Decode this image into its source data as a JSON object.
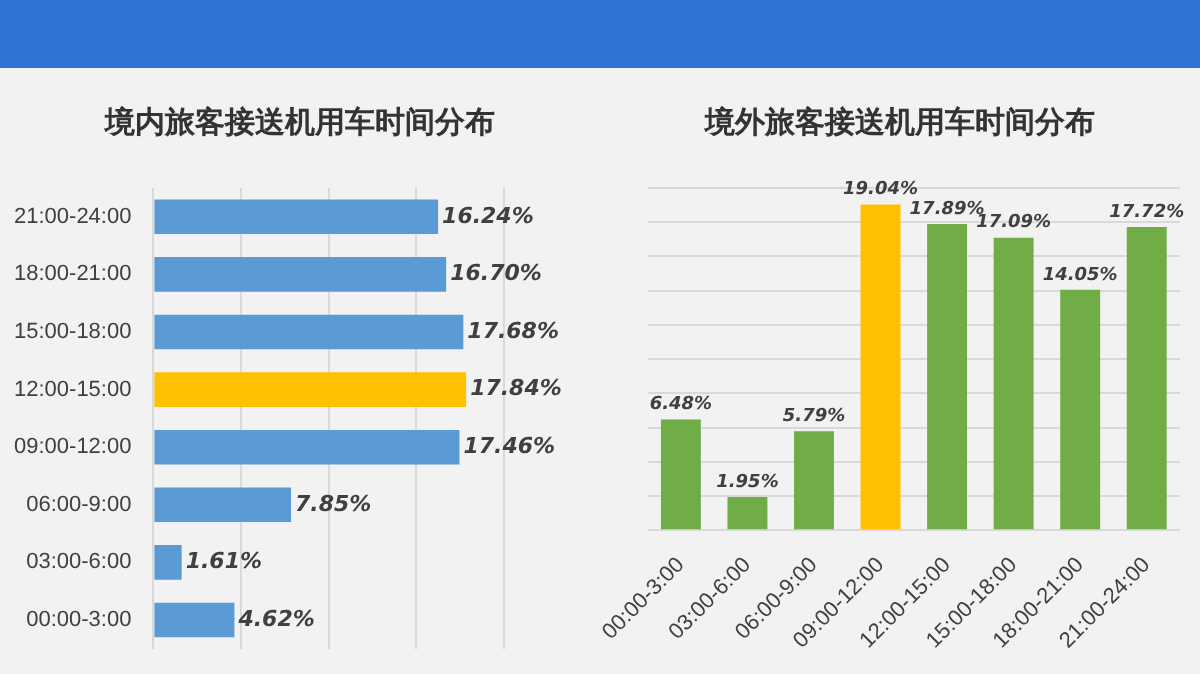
{
  "chart_data": [
    {
      "type": "bar",
      "orientation": "horizontal",
      "title": "境内旅客接送机用车时间分布",
      "categories": [
        "21:00-24:00",
        "18:00-21:00",
        "15:00-18:00",
        "12:00-15:00",
        "09:00-12:00",
        "06:00-9:00",
        "03:00-6:00",
        "00:00-3:00"
      ],
      "values": [
        16.24,
        16.7,
        17.68,
        17.84,
        17.46,
        7.85,
        1.61,
        4.62
      ],
      "value_labels": [
        "16.24%",
        "16.70%",
        "17.68%",
        "17.84%",
        "17.46%",
        "7.85%",
        "1.61%",
        "4.62%"
      ],
      "colors": [
        "#5b9bd5",
        "#5b9bd5",
        "#5b9bd5",
        "#ffc000",
        "#5b9bd5",
        "#5b9bd5",
        "#5b9bd5",
        "#5b9bd5"
      ],
      "grid": "x",
      "tick_labels": "y"
    },
    {
      "type": "bar",
      "title": "境外旅客接送机用车时间分布",
      "categories": [
        "00:00-3:00",
        "03:00-6:00",
        "06:00-9:00",
        "09:00-12:00",
        "12:00-15:00",
        "15:00-18:00",
        "18:00-21:00",
        "21:00-24:00"
      ],
      "values": [
        6.48,
        1.95,
        5.79,
        19.04,
        17.89,
        17.09,
        14.05,
        17.72
      ],
      "value_labels": [
        "6.48%",
        "1.95%",
        "5.79%",
        "19.04%",
        "17.89%",
        "17.09%",
        "14.05%",
        "17.72%"
      ],
      "colors": [
        "#70ad47",
        "#70ad47",
        "#70ad47",
        "#ffc000",
        "#70ad47",
        "#70ad47",
        "#70ad47",
        "#70ad47"
      ],
      "grid": "y",
      "tick_labels": "x"
    }
  ]
}
